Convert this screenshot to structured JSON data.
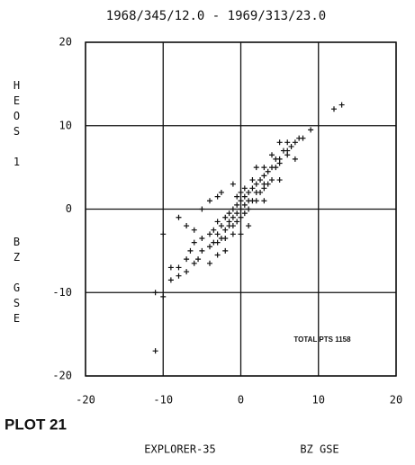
{
  "plot_label": "PLOT 21",
  "chart_data": {
    "type": "scatter",
    "title": "1968/345/12.0 - 1969/313/23.0",
    "x_label": [
      "EXPLORER-35",
      "BZ GSE"
    ],
    "y_label": [
      "HEOS 1",
      "BZ GSE"
    ],
    "annotations": [
      "TOTAL PTS 1158"
    ],
    "xlim": [
      -20,
      20
    ],
    "ylim": [
      -20,
      20
    ],
    "xticks": [
      -20,
      -10,
      0,
      10,
      20
    ],
    "yticks": [
      -20,
      -10,
      0,
      10,
      20
    ],
    "grid": true,
    "color": "#111111",
    "x": [
      -4,
      -4,
      -3.5,
      -3.5,
      -3,
      -3,
      -3,
      -2.5,
      -2.5,
      -2,
      -2,
      -2,
      -1.5,
      -1.5,
      -1.5,
      -1,
      -1,
      -1,
      -0.5,
      -0.5,
      -0.5,
      0,
      0,
      0,
      0.5,
      0.5,
      0.5,
      1,
      1,
      1,
      1.5,
      1.5,
      2,
      2,
      2,
      2.5,
      2.5,
      3,
      3,
      3,
      3.5,
      3.5,
      4,
      4,
      4.5,
      4.5,
      5,
      5,
      5.5,
      6,
      6,
      6.5,
      7,
      7.5,
      8,
      9,
      12,
      13,
      -5,
      -5,
      -5.5,
      -6,
      -6,
      -6.5,
      -7,
      -7,
      -8,
      -8,
      -9,
      -9,
      -10,
      -11,
      -11,
      -10,
      -8,
      -7,
      -5,
      -3,
      -4,
      -2,
      0,
      1,
      3,
      5,
      2,
      -1,
      -2.5,
      -4,
      -3,
      -6,
      4,
      6,
      3,
      5,
      7,
      -1,
      0,
      1.5,
      -0.5,
      0.5
    ],
    "y": [
      -3,
      -4.5,
      -2.5,
      -4,
      -3,
      -1.5,
      -4,
      -2,
      -3.5,
      -1,
      -2.5,
      -3.5,
      -0.5,
      -2,
      -1.5,
      0,
      -1,
      -2,
      0.5,
      -0.5,
      -1.5,
      1,
      0,
      -1,
      1.5,
      0.5,
      -0.5,
      2,
      1,
      0,
      2.5,
      1,
      3,
      2,
      1,
      3.5,
      2,
      4,
      2.5,
      3,
      4.5,
      3,
      5,
      3.5,
      5,
      6,
      6,
      5.5,
      7,
      6.5,
      7,
      7.5,
      8,
      8.5,
      8.5,
      9.5,
      12,
      12.5,
      -5,
      -3.5,
      -6,
      -4,
      -6.5,
      -5,
      -6,
      -7.5,
      -8,
      -7,
      -8.5,
      -7,
      -10.5,
      -10,
      -17,
      -3,
      -1,
      -2,
      0,
      1.5,
      1,
      -5,
      -3,
      -2,
      5,
      8,
      5,
      3,
      2,
      -6.5,
      -5.5,
      -2.5,
      6.5,
      8,
      1,
      3.5,
      6,
      -3,
      2,
      3.5,
      1.5,
      2.5
    ]
  }
}
